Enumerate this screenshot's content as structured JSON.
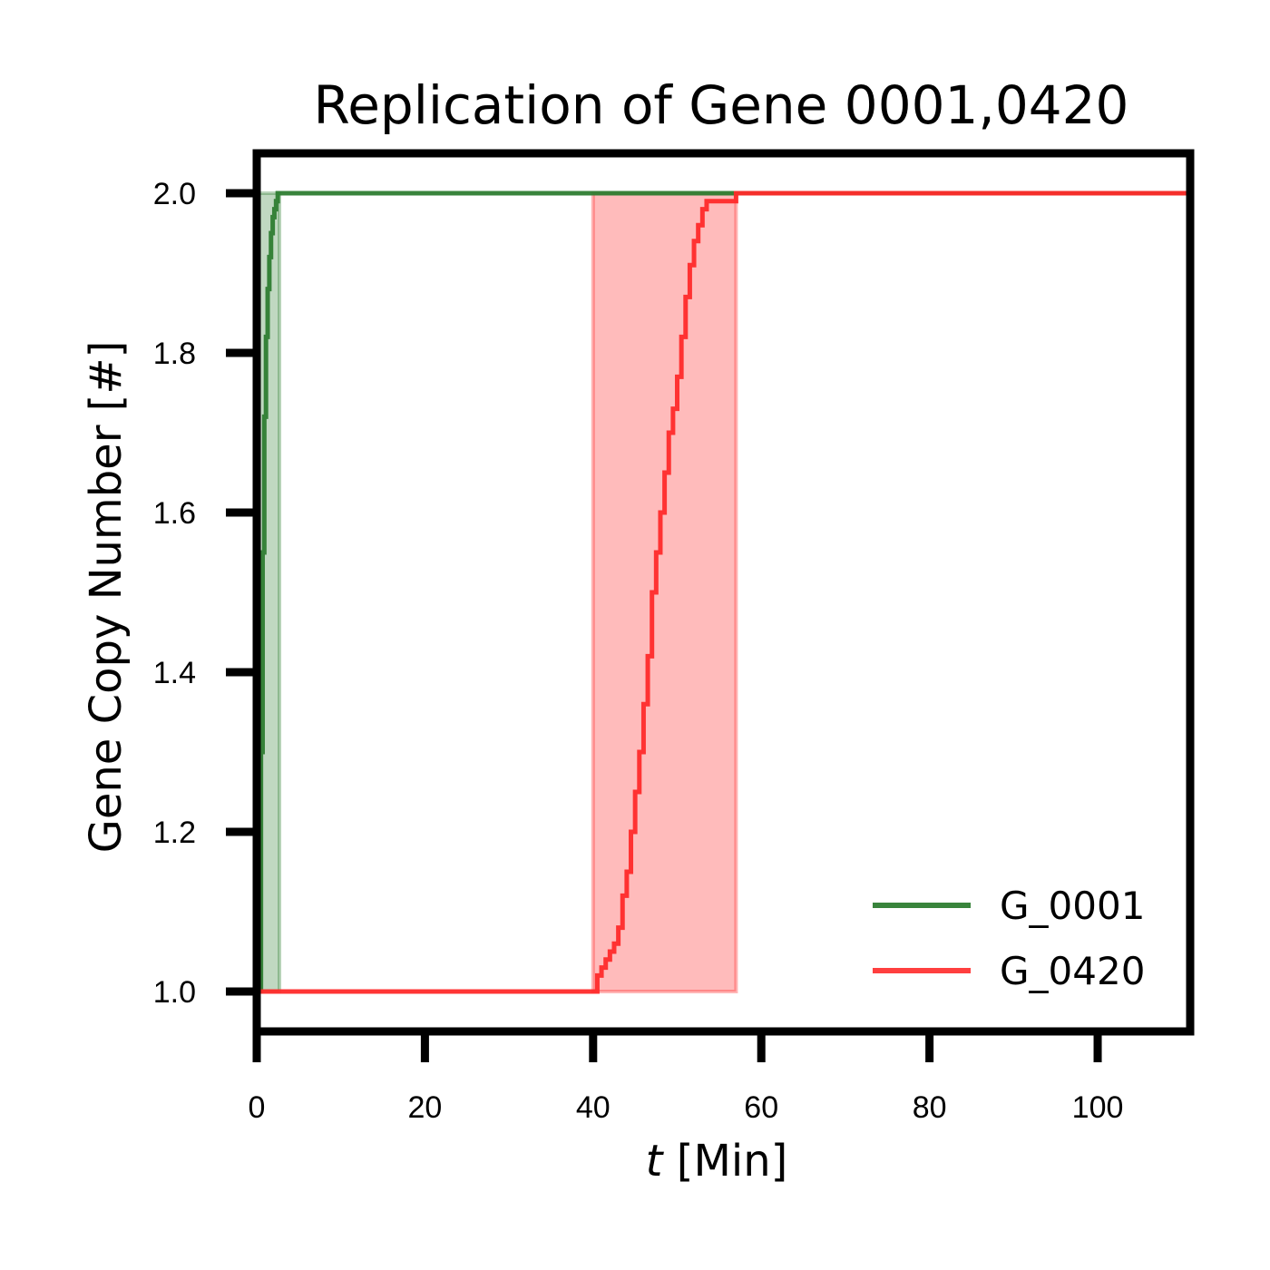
{
  "chart_data": {
    "type": "line",
    "title": "Replication of Gene 0001,0420",
    "xlabel_var": "t",
    "xlabel_unit": "[Min]",
    "ylabel": "Gene Copy Number [#]",
    "xlim": [
      0,
      111
    ],
    "ylim": [
      0.95,
      2.05
    ],
    "xticks": [
      0,
      20,
      40,
      60,
      80,
      100
    ],
    "xtick_labels": [
      "0",
      "20",
      "40",
      "60",
      "80",
      "100"
    ],
    "yticks": [
      1.0,
      1.2,
      1.4,
      1.6,
      1.8,
      2.0
    ],
    "ytick_labels": [
      "1.0",
      "1.2",
      "1.4",
      "1.6",
      "1.8",
      "2.0"
    ],
    "legend_position": "lower-right",
    "series": [
      {
        "name": "G_0001",
        "color": "#2e7d32",
        "band": [
          0.2,
          2.7
        ],
        "x": [
          0,
          0.3,
          0.5,
          0.7,
          0.9,
          1.1,
          1.3,
          1.5,
          1.7,
          1.9,
          2.1,
          2.3,
          2.5,
          111
        ],
        "y": [
          1.0,
          1.0,
          1.3,
          1.55,
          1.72,
          1.82,
          1.88,
          1.92,
          1.95,
          1.97,
          1.98,
          1.99,
          2.0,
          2.0
        ]
      },
      {
        "name": "G_0420",
        "color": "#ff2a2a",
        "band": [
          40.0,
          57.0
        ],
        "x": [
          0,
          40.0,
          40.5,
          41.0,
          41.5,
          42.0,
          42.5,
          43.0,
          43.5,
          44.0,
          44.5,
          45.0,
          45.5,
          46.0,
          46.5,
          47.0,
          47.5,
          48.0,
          48.5,
          49.0,
          49.5,
          50.0,
          50.5,
          51.0,
          51.5,
          52.0,
          52.5,
          53.0,
          53.5,
          54.0,
          55.0,
          56.0,
          57.0,
          111
        ],
        "y": [
          1.0,
          1.0,
          1.02,
          1.03,
          1.04,
          1.05,
          1.06,
          1.08,
          1.12,
          1.15,
          1.2,
          1.25,
          1.3,
          1.36,
          1.42,
          1.5,
          1.55,
          1.6,
          1.65,
          1.7,
          1.73,
          1.77,
          1.82,
          1.87,
          1.91,
          1.94,
          1.96,
          1.98,
          1.99,
          1.99,
          1.99,
          1.99,
          2.0,
          2.0
        ]
      }
    ]
  }
}
